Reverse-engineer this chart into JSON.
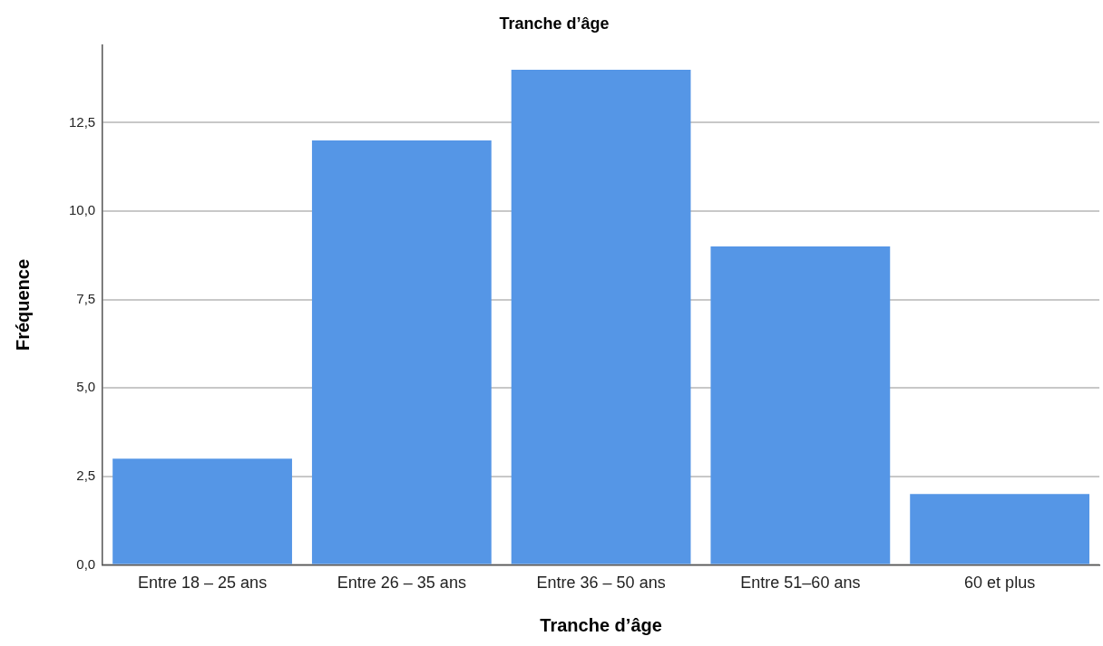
{
  "chart_data": {
    "type": "bar",
    "title": "Tranche d’âge",
    "xlabel": "Tranche d’âge",
    "ylabel": "Fréquence",
    "categories": [
      "Entre 18 – 25 ans",
      "Entre 26 – 35 ans",
      "Entre 36 – 50 ans",
      "Entre 51–60 ans",
      "60 et plus"
    ],
    "values": [
      3,
      12,
      14,
      9,
      2
    ],
    "color": "#5596e6",
    "ylim": [
      0,
      14.7
    ],
    "yticks": [
      {
        "value": 0,
        "label": "0,0"
      },
      {
        "value": 2.5,
        "label": "2,5"
      },
      {
        "value": 5,
        "label": "5,0"
      },
      {
        "value": 7.5,
        "label": "7,5"
      },
      {
        "value": 10,
        "label": "10,0"
      },
      {
        "value": 12.5,
        "label": "12,5"
      }
    ],
    "grid": "y",
    "legend": false
  }
}
